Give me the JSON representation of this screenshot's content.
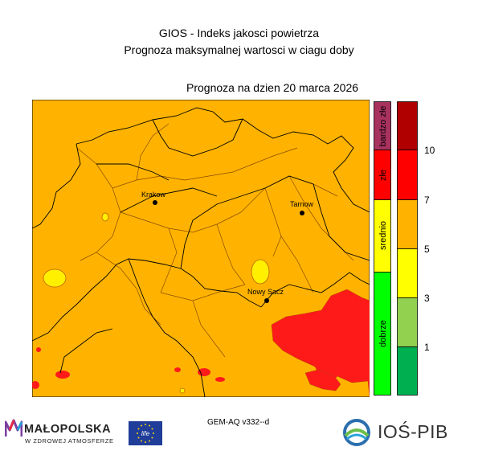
{
  "header": {
    "title": "GIOS - Indeks jakosci powietrza",
    "subtitle": "Prognoza maksymalnej wartosci w ciagu doby",
    "forecast_date": "Prognoza na dzien  20 marca 2026"
  },
  "map": {
    "cities": [
      {
        "name": "Krakow"
      },
      {
        "name": "Tarnow"
      },
      {
        "name": "Nowy Sacz"
      }
    ],
    "colors": {
      "background": "#FFB300",
      "hotspot": "#FF1A1A",
      "low": "#FFF000",
      "boundary": "#000000",
      "boundary_secondary": "#8A4A00"
    }
  },
  "quality_legend": {
    "labels": [
      "bardzo złe",
      "złe",
      "srednio",
      "dobrze"
    ],
    "colors": [
      "#A8325E",
      "#FF0000",
      "#FFFF00",
      "#00FF00"
    ]
  },
  "value_scale": {
    "colors": [
      "#B00000",
      "#FF0000",
      "#FFB300",
      "#FFFF00",
      "#92D050",
      "#00B050"
    ],
    "ticks": [
      "10",
      "7",
      "5",
      "3",
      "1"
    ]
  },
  "footer": {
    "model": "GEM-AQ v332--d",
    "malopolska_name": "MAŁOPOLSKA",
    "malopolska_tagline": "W ZDROWEJ ATMOSFERZE",
    "eu_flag_text": "life",
    "institute_name": "IOŚ-PIB"
  }
}
